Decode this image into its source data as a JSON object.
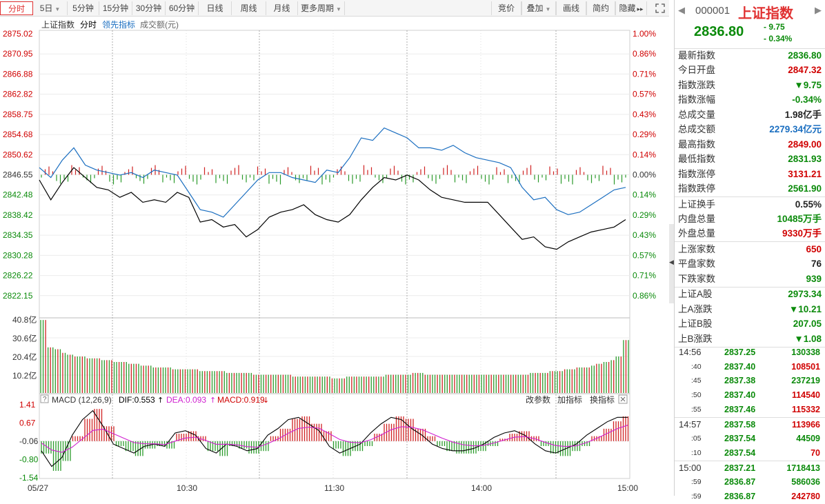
{
  "toolbar": {
    "tabs_left": [
      {
        "label": "分时",
        "active": true
      },
      {
        "label": "5日",
        "dropdown": true
      },
      {
        "label": "5分钟"
      },
      {
        "label": "15分钟"
      },
      {
        "label": "30分钟"
      },
      {
        "label": "60分钟"
      },
      {
        "label": "日线"
      },
      {
        "label": "周线"
      },
      {
        "label": "月线"
      },
      {
        "label": "更多周期",
        "dropdown": true
      }
    ],
    "tabs_right": [
      {
        "label": "竞价"
      },
      {
        "label": "叠加",
        "dropdown": true
      },
      {
        "label": "画线"
      },
      {
        "label": "简约"
      },
      {
        "label": "隐藏",
        "suffix": "▸▸"
      }
    ],
    "fullscreen_icon": "expand-icon"
  },
  "legend": {
    "name": "上证指数",
    "fenshi": "分时",
    "leading": "领先指标",
    "volume_label": "成交额(元)"
  },
  "macd_legend": {
    "help": "?",
    "name": "MACD (12,26,9)",
    "dif": "DIF:0.553",
    "dea": "DEA:0.093",
    "macd": "MACD:0.919",
    "change_params": "改参数",
    "add_indicator": "加指标",
    "switch_indicator": "换指标"
  },
  "chart_data": {
    "type": "line",
    "price_axis": [
      "2875.02",
      "2870.95",
      "2866.88",
      "2862.82",
      "2858.75",
      "2854.68",
      "2850.62",
      "2846.55",
      "2842.48",
      "2838.42",
      "2834.35",
      "2830.28",
      "2826.22",
      "2822.15"
    ],
    "pct_axis": [
      "1.00%",
      "0.86%",
      "0.71%",
      "0.57%",
      "0.43%",
      "0.29%",
      "0.14%",
      "0.00%",
      "0.14%",
      "0.29%",
      "0.43%",
      "0.57%",
      "0.71%",
      "0.86%"
    ],
    "ylim": [
      2818.08,
      2875.02
    ],
    "prev_close": 2846.55,
    "volume_axis": [
      "40.8亿",
      "30.6亿",
      "20.4亿",
      "10.2亿"
    ],
    "macd_axis": [
      "1.41",
      "0.67",
      "-0.06",
      "-0.80",
      "-1.54"
    ],
    "x_labels": [
      "05/27",
      "10:30",
      "11:30",
      "14:00",
      "15:00"
    ],
    "series": [
      {
        "name": "上证指数",
        "color": "#000000",
        "values": [
          2845.5,
          2841.5,
          2845.0,
          2848.0,
          2846.0,
          2844.0,
          2843.5,
          2842.0,
          2843.0,
          2841.0,
          2841.5,
          2841.0,
          2843.0,
          2842.0,
          2837.0,
          2837.5,
          2836.0,
          2836.5,
          2834.0,
          2835.5,
          2838.0,
          2839.0,
          2839.5,
          2840.5,
          2838.5,
          2837.5,
          2837.0,
          2838.5,
          2841.5,
          2844.0,
          2846.0,
          2845.5,
          2846.5,
          2845.5,
          2843.5,
          2842.0,
          2841.5,
          2841.0,
          2841.0,
          2841.0,
          2838.5,
          2836.0,
          2833.5,
          2834.0,
          2832.0,
          2831.5,
          2833.0,
          2834.0,
          2835.0,
          2835.5,
          2836.0,
          2837.5
        ]
      },
      {
        "name": "领先指标",
        "color": "#1a6ec0",
        "values": [
          2848.0,
          2846.0,
          2849.5,
          2852.0,
          2848.5,
          2847.5,
          2847.0,
          2846.5,
          2847.0,
          2846.0,
          2847.5,
          2847.0,
          2846.5,
          2843.0,
          2839.5,
          2839.0,
          2838.0,
          2840.5,
          2843.0,
          2845.5,
          2847.0,
          2847.0,
          2846.0,
          2845.5,
          2845.0,
          2847.5,
          2847.0,
          2850.0,
          2854.0,
          2853.5,
          2856.0,
          2855.0,
          2854.0,
          2852.0,
          2852.0,
          2851.5,
          2852.5,
          2851.0,
          2850.0,
          2849.5,
          2849.0,
          2848.0,
          2844.0,
          2841.5,
          2842.0,
          2839.5,
          2838.5,
          2839.0,
          2840.5,
          2842.0,
          2843.5,
          2844.0
        ]
      }
    ],
    "volume_values": [
      40,
      25,
      24,
      22,
      21,
      20,
      20,
      19,
      19,
      18,
      18,
      17,
      17,
      16,
      16,
      15,
      15,
      14,
      14,
      14,
      13,
      13,
      13,
      13,
      12,
      12,
      12,
      12,
      11,
      11,
      11,
      11,
      10,
      10,
      10,
      10,
      10,
      10,
      9,
      9,
      9,
      9,
      9,
      9,
      8,
      8,
      9,
      9,
      9,
      9,
      9,
      9,
      10,
      10,
      10,
      10,
      11,
      11,
      10,
      10,
      10,
      10,
      10,
      10,
      10,
      10,
      10,
      10,
      10,
      10,
      10,
      10,
      10,
      10,
      11,
      11,
      11,
      12,
      12,
      13,
      13,
      14,
      14,
      15,
      16,
      17,
      18,
      20,
      29
    ],
    "macd_values": [
      -0.5,
      -1.2,
      -0.8,
      0.2,
      0.9,
      1.3,
      0.6,
      -0.2,
      -0.4,
      -0.6,
      -0.3,
      -0.2,
      -0.3,
      0.3,
      0.4,
      0.2,
      -0.4,
      -0.6,
      -0.2,
      -0.3,
      -0.5,
      -0.4,
      0.2,
      0.5,
      0.9,
      1.0,
      0.7,
      0.4,
      -0.3,
      -0.6,
      -0.4,
      -0.2,
      0.3,
      0.7,
      1.0,
      0.9,
      0.5,
      0.2,
      -0.2,
      -0.4,
      -0.5,
      -0.5,
      -0.4,
      -0.2,
      0.1,
      0.3,
      0.4,
      0.2,
      -0.2,
      -0.5,
      -0.6,
      -0.4,
      -0.2,
      0.2,
      0.5,
      0.8,
      1.0,
      1.0
    ]
  },
  "panel": {
    "code": "000001",
    "name": "上证指数",
    "price": "2836.80",
    "change": "- 9.75",
    "change_pct": "- 0.34%",
    "stats": [
      {
        "k": "最新指数",
        "v": "2836.80",
        "c": "green"
      },
      {
        "k": "今日开盘",
        "v": "2847.32",
        "c": "red"
      },
      {
        "k": "指数涨跌",
        "v": "▼9.75",
        "c": "green"
      },
      {
        "k": "指数涨幅",
        "v": "-0.34%",
        "c": "green"
      },
      {
        "k": "总成交量",
        "v": "1.98亿手",
        "c": "dark"
      },
      {
        "k": "总成交额",
        "v": "2279.34亿元",
        "c": "blue"
      },
      {
        "k": "最高指数",
        "v": "2849.00",
        "c": "red"
      },
      {
        "k": "最低指数",
        "v": "2831.93",
        "c": "green"
      },
      {
        "k": "指数涨停",
        "v": "3131.21",
        "c": "red"
      },
      {
        "k": "指数跌停",
        "v": "2561.90",
        "c": "green"
      },
      {
        "k": "上证换手",
        "v": "0.55%",
        "c": "dark"
      },
      {
        "k": "内盘总量",
        "v": "10485万手",
        "c": "green"
      },
      {
        "k": "外盘总量",
        "v": "9330万手",
        "c": "red"
      },
      {
        "k": "上涨家数",
        "v": "650",
        "c": "red"
      },
      {
        "k": "平盘家数",
        "v": "76",
        "c": "dark"
      },
      {
        "k": "下跌家数",
        "v": "939",
        "c": "green"
      },
      {
        "k": "上证A股",
        "v": "2973.34",
        "c": "green"
      },
      {
        "k": "上A涨跌",
        "v": "▼10.21",
        "c": "green"
      },
      {
        "k": "上证B股",
        "v": "207.05",
        "c": "green"
      },
      {
        "k": "上B涨跌",
        "v": "▼1.08",
        "c": "green"
      }
    ],
    "ticks": [
      {
        "t": "14:56",
        "p": "2837.25",
        "q": "130338",
        "c": "green"
      },
      {
        "t": ":40",
        "p": "2837.40",
        "q": "108501",
        "c": "red"
      },
      {
        "t": ":45",
        "p": "2837.38",
        "q": "237219",
        "c": "green"
      },
      {
        "t": ":50",
        "p": "2837.40",
        "q": "114540",
        "c": "red"
      },
      {
        "t": ":55",
        "p": "2837.46",
        "q": "115332",
        "c": "red"
      },
      {
        "t": "14:57",
        "p": "2837.58",
        "q": "113966",
        "c": "red"
      },
      {
        "t": ":05",
        "p": "2837.54",
        "q": "44509",
        "c": "green"
      },
      {
        "t": ":10",
        "p": "2837.54",
        "q": "70",
        "c": "red"
      },
      {
        "t": "15:00",
        "p": "2837.21",
        "q": "1718413",
        "c": "green"
      },
      {
        "t": ":59",
        "p": "2836.87",
        "q": "586036",
        "c": "green"
      },
      {
        "t": ":59",
        "p": "2836.87",
        "q": "242780",
        "c": "red"
      }
    ]
  }
}
